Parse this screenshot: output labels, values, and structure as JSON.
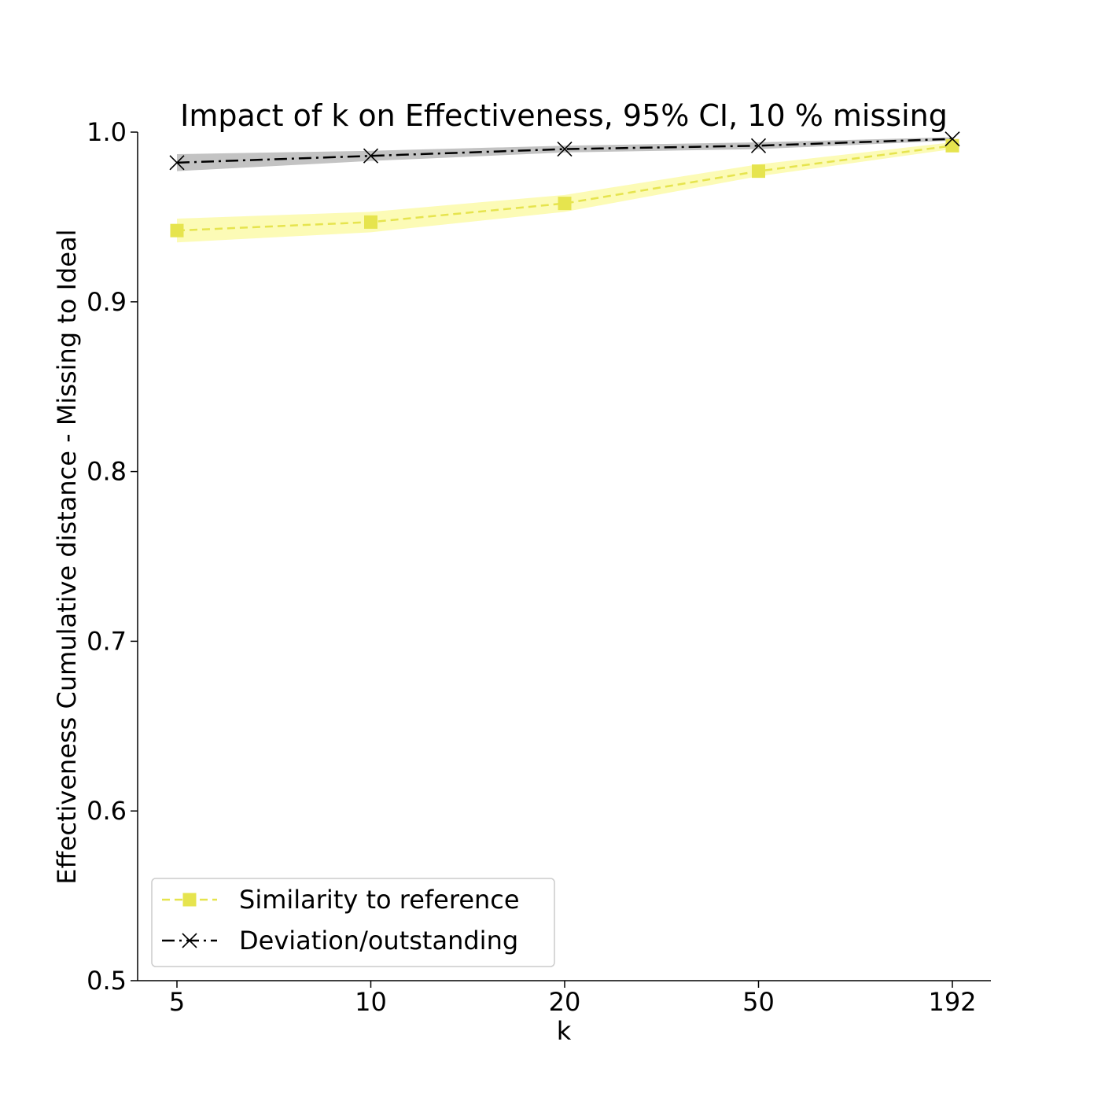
{
  "chart_data": {
    "type": "line",
    "title": "Impact of k on Effectiveness, 95% CI, 10 % missing",
    "xlabel": "k",
    "ylabel": "Effectiveness Cumulative distance - Missing to Ideal",
    "categories": [
      "5",
      "10",
      "20",
      "50",
      "192"
    ],
    "ylim": [
      0.5,
      1.0
    ],
    "yticks": [
      "0.5",
      "0.6",
      "0.7",
      "0.8",
      "0.9",
      "1.0"
    ],
    "grid": false,
    "legend_position": "lower-left",
    "series": [
      {
        "name": "Similarity to reference",
        "values": [
          0.942,
          0.947,
          0.958,
          0.977,
          0.992
        ],
        "ci_low": [
          0.935,
          0.941,
          0.953,
          0.974,
          0.99
        ],
        "ci_high": [
          0.949,
          0.953,
          0.963,
          0.981,
          0.994
        ],
        "color": "#e6e44e",
        "band_color": "#fbfaa9",
        "marker": "square",
        "line_style": "dashed"
      },
      {
        "name": "Deviation/outstanding",
        "values": [
          0.982,
          0.986,
          0.99,
          0.992,
          0.996
        ],
        "ci_low": [
          0.977,
          0.983,
          0.988,
          0.99,
          0.995
        ],
        "ci_high": [
          0.987,
          0.989,
          0.992,
          0.994,
          0.997
        ],
        "color": "#000000",
        "band_color": "#b8b8b8",
        "marker": "x",
        "line_style": "dashdot"
      }
    ]
  }
}
